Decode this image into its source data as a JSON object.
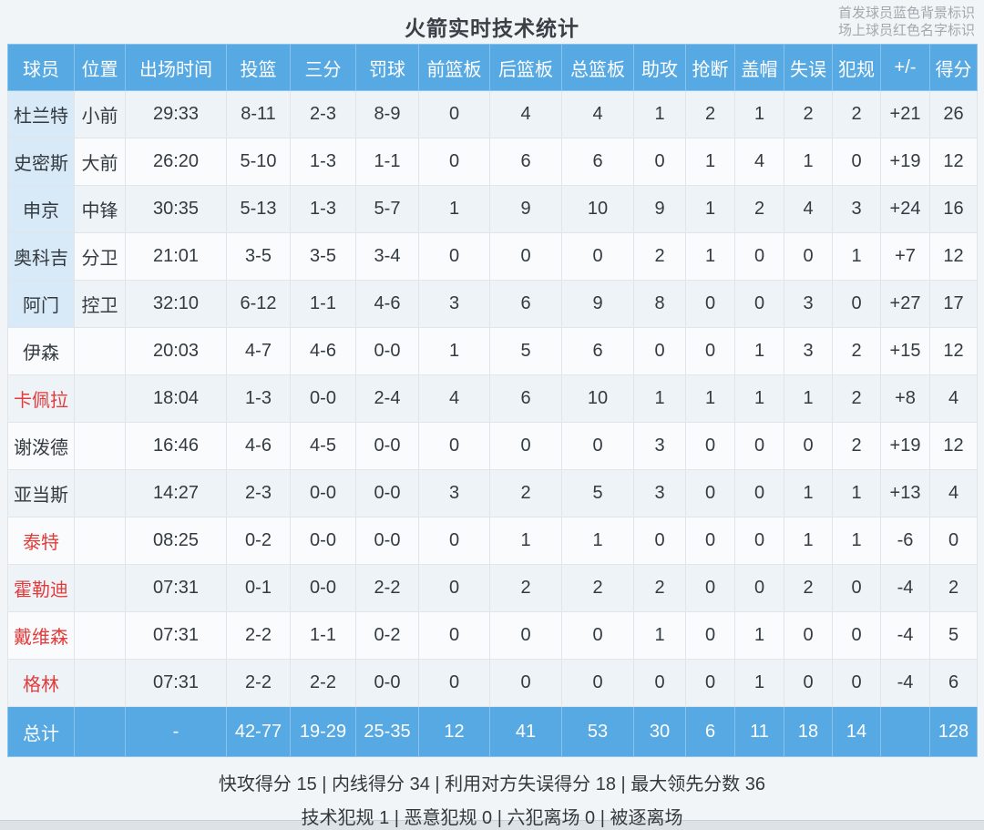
{
  "title": "火箭实时技术统计",
  "legend": {
    "line1": "首发球员蓝色背景标识",
    "line2": "场上球员红色名字标识"
  },
  "colors": {
    "header_bg": "#57a9e3",
    "total_bg": "#57a9e3",
    "starter_cell_bg": "#d8e9f7",
    "oncourt_name": "#e23b3b",
    "text": "#333a40"
  },
  "columns": [
    "球员",
    "位置",
    "出场时间",
    "投篮",
    "三分",
    "罚球",
    "前篮板",
    "后篮板",
    "总篮板",
    "助攻",
    "抢断",
    "盖帽",
    "失误",
    "犯规",
    "+/-",
    "得分"
  ],
  "players": [
    {
      "name": "杜兰特",
      "pos": "小前",
      "time": "29:33",
      "fg": "8-11",
      "tp": "2-3",
      "ft": "8-9",
      "orb": "0",
      "drb": "4",
      "trb": "4",
      "ast": "1",
      "stl": "2",
      "blk": "1",
      "tov": "2",
      "pf": "2",
      "pm": "+21",
      "pts": "26",
      "starter": true,
      "oncourt": false
    },
    {
      "name": "史密斯",
      "pos": "大前",
      "time": "26:20",
      "fg": "5-10",
      "tp": "1-3",
      "ft": "1-1",
      "orb": "0",
      "drb": "6",
      "trb": "6",
      "ast": "0",
      "stl": "1",
      "blk": "4",
      "tov": "1",
      "pf": "0",
      "pm": "+19",
      "pts": "12",
      "starter": true,
      "oncourt": false
    },
    {
      "name": "申京",
      "pos": "中锋",
      "time": "30:35",
      "fg": "5-13",
      "tp": "1-3",
      "ft": "5-7",
      "orb": "1",
      "drb": "9",
      "trb": "10",
      "ast": "9",
      "stl": "1",
      "blk": "2",
      "tov": "4",
      "pf": "3",
      "pm": "+24",
      "pts": "16",
      "starter": true,
      "oncourt": false
    },
    {
      "name": "奥科吉",
      "pos": "分卫",
      "time": "21:01",
      "fg": "3-5",
      "tp": "3-5",
      "ft": "3-4",
      "orb": "0",
      "drb": "0",
      "trb": "0",
      "ast": "2",
      "stl": "1",
      "blk": "0",
      "tov": "0",
      "pf": "1",
      "pm": "+7",
      "pts": "12",
      "starter": true,
      "oncourt": false
    },
    {
      "name": "阿门",
      "pos": "控卫",
      "time": "32:10",
      "fg": "6-12",
      "tp": "1-1",
      "ft": "4-6",
      "orb": "3",
      "drb": "6",
      "trb": "9",
      "ast": "8",
      "stl": "0",
      "blk": "0",
      "tov": "3",
      "pf": "0",
      "pm": "+27",
      "pts": "17",
      "starter": true,
      "oncourt": false
    },
    {
      "name": "伊森",
      "pos": "",
      "time": "20:03",
      "fg": "4-7",
      "tp": "4-6",
      "ft": "0-0",
      "orb": "1",
      "drb": "5",
      "trb": "6",
      "ast": "0",
      "stl": "0",
      "blk": "1",
      "tov": "3",
      "pf": "2",
      "pm": "+15",
      "pts": "12",
      "starter": false,
      "oncourt": false
    },
    {
      "name": "卡佩拉",
      "pos": "",
      "time": "18:04",
      "fg": "1-3",
      "tp": "0-0",
      "ft": "2-4",
      "orb": "4",
      "drb": "6",
      "trb": "10",
      "ast": "1",
      "stl": "1",
      "blk": "1",
      "tov": "1",
      "pf": "2",
      "pm": "+8",
      "pts": "4",
      "starter": false,
      "oncourt": true
    },
    {
      "name": "谢泼德",
      "pos": "",
      "time": "16:46",
      "fg": "4-6",
      "tp": "4-5",
      "ft": "0-0",
      "orb": "0",
      "drb": "0",
      "trb": "0",
      "ast": "3",
      "stl": "0",
      "blk": "0",
      "tov": "0",
      "pf": "2",
      "pm": "+19",
      "pts": "12",
      "starter": false,
      "oncourt": false
    },
    {
      "name": "亚当斯",
      "pos": "",
      "time": "14:27",
      "fg": "2-3",
      "tp": "0-0",
      "ft": "0-0",
      "orb": "3",
      "drb": "2",
      "trb": "5",
      "ast": "3",
      "stl": "0",
      "blk": "0",
      "tov": "1",
      "pf": "1",
      "pm": "+13",
      "pts": "4",
      "starter": false,
      "oncourt": false
    },
    {
      "name": "泰特",
      "pos": "",
      "time": "08:25",
      "fg": "0-2",
      "tp": "0-0",
      "ft": "0-0",
      "orb": "0",
      "drb": "1",
      "trb": "1",
      "ast": "0",
      "stl": "0",
      "blk": "0",
      "tov": "1",
      "pf": "1",
      "pm": "-6",
      "pts": "0",
      "starter": false,
      "oncourt": true
    },
    {
      "name": "霍勒迪",
      "pos": "",
      "time": "07:31",
      "fg": "0-1",
      "tp": "0-0",
      "ft": "2-2",
      "orb": "0",
      "drb": "2",
      "trb": "2",
      "ast": "2",
      "stl": "0",
      "blk": "0",
      "tov": "2",
      "pf": "0",
      "pm": "-4",
      "pts": "2",
      "starter": false,
      "oncourt": true
    },
    {
      "name": "戴维森",
      "pos": "",
      "time": "07:31",
      "fg": "2-2",
      "tp": "1-1",
      "ft": "0-2",
      "orb": "0",
      "drb": "0",
      "trb": "0",
      "ast": "1",
      "stl": "0",
      "blk": "1",
      "tov": "0",
      "pf": "0",
      "pm": "-4",
      "pts": "5",
      "starter": false,
      "oncourt": true
    },
    {
      "name": "格林",
      "pos": "",
      "time": "07:31",
      "fg": "2-2",
      "tp": "2-2",
      "ft": "0-0",
      "orb": "0",
      "drb": "0",
      "trb": "0",
      "ast": "0",
      "stl": "0",
      "blk": "1",
      "tov": "0",
      "pf": "0",
      "pm": "-4",
      "pts": "6",
      "starter": false,
      "oncourt": true
    }
  ],
  "total": {
    "name": "总计",
    "pos": "",
    "time": "-",
    "fg": "42-77",
    "tp": "19-29",
    "ft": "25-35",
    "orb": "12",
    "drb": "41",
    "trb": "53",
    "ast": "30",
    "stl": "6",
    "blk": "11",
    "tov": "18",
    "pf": "14",
    "pm": "",
    "pts": "128"
  },
  "footer": {
    "line1": "快攻得分 15 | 内线得分 34 | 利用对方失误得分 18 | 最大领先分数 36",
    "line2": "技术犯规 1 | 恶意犯规 0 | 六犯离场 0 | 被逐离场"
  }
}
